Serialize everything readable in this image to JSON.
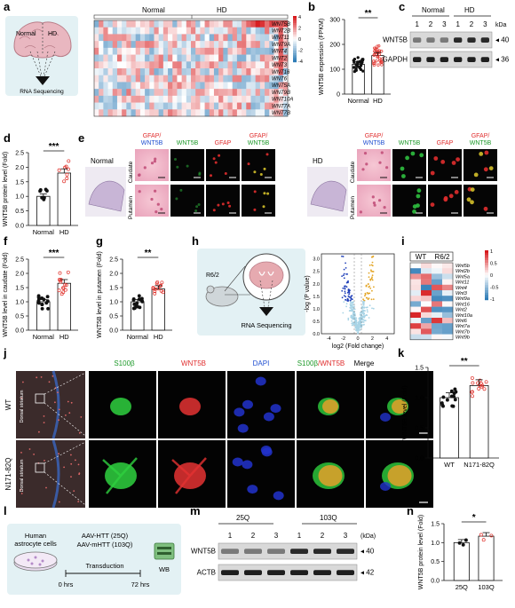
{
  "panels": {
    "a": {
      "letter": "a",
      "brain_labels": [
        "Normal",
        "HD"
      ],
      "arrow_label": "RNA Sequencing",
      "heatmap": {
        "group_labels": [
          "Normal",
          "HD"
        ],
        "genes": [
          "WNT5B",
          "WNT2B",
          "WNT11",
          "WNT9A",
          "WNT4",
          "WNT2",
          "WNT3",
          "WNT16",
          "WNT6",
          "WNT5A",
          "WNT9B",
          "WNT10A",
          "WNT7A",
          "WNT7B"
        ],
        "scale_ticks": [
          "4",
          "2",
          "0",
          "-2",
          "-4"
        ],
        "colors": {
          "high": "#d7191c",
          "mid": "#ffffff",
          "low": "#2c7bb6"
        }
      }
    },
    "b": {
      "letter": "b",
      "sig": "**",
      "ylabel": "WNT5B expression (FPKM)",
      "yticks": [
        "0",
        "100",
        "200",
        "300"
      ],
      "categories": [
        "Normal",
        "HD"
      ]
    },
    "c": {
      "letter": "c",
      "group_labels": [
        "Normal",
        "HD"
      ],
      "lanes": [
        "1",
        "2",
        "3",
        "1",
        "2",
        "3"
      ],
      "kda": "kDa",
      "rows": [
        {
          "label": "WNT5B",
          "marker": "40"
        },
        {
          "label": "GAPDH",
          "marker": "36"
        }
      ]
    },
    "d": {
      "letter": "d",
      "sig": "***",
      "ylabel": "WNT5B protein level (Fold)",
      "yticks": [
        "0.0",
        "0.5",
        "1.0",
        "1.5",
        "2.0",
        "2.5"
      ],
      "categories": [
        "Normal",
        "HD"
      ]
    },
    "e": {
      "letter": "e",
      "normal_title": "Normal",
      "hd_title": "HD",
      "col_headers": {
        "gfap_wnt5b_a": "GFAP/",
        "gfap_wnt5b_b": "WNT5B",
        "wnt5b": "WNT5B",
        "gfap": "GFAP",
        "merge_a": "GFAP/",
        "merge_b": "WNT5B"
      },
      "row_labels": [
        "Caudate",
        "Putamen"
      ]
    },
    "f": {
      "letter": "f",
      "sig": "***",
      "ylabel": "WNT5B level in caudate (Fold)",
      "yticks": [
        "0.0",
        "0.5",
        "1.0",
        "1.5",
        "2.0",
        "2.5"
      ],
      "categories": [
        "Normal",
        "HD"
      ]
    },
    "g": {
      "letter": "g",
      "sig": "**",
      "ylabel": "WNT5B level in putamen (Fold)",
      "yticks": [
        "0.0",
        "0.5",
        "1.0",
        "1.5",
        "2.0",
        "2.5"
      ],
      "categories": [
        "Normal",
        "HD"
      ]
    },
    "h": {
      "letter": "h",
      "mouse_label": "R6/2",
      "arrow_label": "RNA Sequencing",
      "volcano": {
        "ylabel": "-log (P value)",
        "xlabel": "log2 (Fold change)",
        "xticks": [
          "-4",
          "-2",
          "0",
          "2",
          "4"
        ],
        "yticks": [
          "0.0",
          "0.5",
          "1.0",
          "1.5",
          "2.0",
          "2.5",
          "3.0"
        ]
      }
    },
    "i": {
      "letter": "i",
      "group_labels": [
        "WT",
        "R6/2"
      ],
      "genes": [
        "Wnt5b",
        "Wnt2b",
        "Wnt5a",
        "Wnt11",
        "Wnt4",
        "Wnt3",
        "Wnt9a",
        "Wnt16",
        "Wnt2",
        "Wnt10a",
        "Wnt6",
        "Wnt7a",
        "Wnt7b",
        "Wnt9b"
      ],
      "scale_ticks": [
        "1",
        "0.5",
        "0",
        "-0.5",
        "-1"
      ]
    },
    "j": {
      "letter": "j",
      "col_headers": {
        "s100b": "S100β",
        "wnt5b": "WNT5B",
        "dapi": "DAPI",
        "merge_a": "S100β",
        "merge_b": "/WNT5B",
        "merge": "Merge"
      },
      "row_labels": [
        "WT",
        "N171-82Q"
      ],
      "region_label": "Dorsal striatum"
    },
    "k": {
      "letter": "k",
      "sig": "**",
      "ylabel": "WNT5B level (Fold)",
      "yticks": [
        "0.0",
        "0.5",
        "1.0",
        "1.5"
      ],
      "categories": [
        "WT",
        "N171-82Q"
      ]
    },
    "l": {
      "letter": "l",
      "cell_label_1": "Human",
      "cell_label_2": "astrocyte cells",
      "aav_1": "AAV-HTT (25Q)",
      "aav_2": "AAV-mHTT (103Q)",
      "transduction": "Transduction",
      "t0": "0 hrs",
      "t1": "72 hrs",
      "wb": "WB"
    },
    "m": {
      "letter": "m",
      "group_labels": [
        "25Q",
        "103Q"
      ],
      "lanes": [
        "1",
        "2",
        "3",
        "1",
        "2",
        "3"
      ],
      "kda": "(kDa)",
      "rows": [
        {
          "label": "WNT5B",
          "marker": "40"
        },
        {
          "label": "ACTB",
          "marker": "42"
        }
      ]
    },
    "n": {
      "letter": "n",
      "sig": "*",
      "ylabel": "WNT5B protein level (Fold)",
      "yticks": [
        "0.0",
        "0.5",
        "1.0",
        "1.5"
      ],
      "categories": [
        "25Q",
        "103Q"
      ]
    }
  },
  "chart_data": [
    {
      "type": "bar",
      "panel": "b",
      "categories": [
        "Normal",
        "HD"
      ],
      "values": [
        120,
        155
      ],
      "ylim": [
        0,
        300
      ],
      "ylabel": "WNT5B expression (FPKM)"
    },
    {
      "type": "bar",
      "panel": "d",
      "categories": [
        "Normal",
        "HD"
      ],
      "values": [
        1.0,
        1.8
      ],
      "ylim": [
        0,
        2.5
      ],
      "ylabel": "WNT5B protein level (Fold)"
    },
    {
      "type": "bar",
      "panel": "f",
      "categories": [
        "Normal",
        "HD"
      ],
      "values": [
        1.0,
        1.65
      ],
      "ylim": [
        0,
        2.5
      ],
      "ylabel": "WNT5B level in caudate (Fold)"
    },
    {
      "type": "bar",
      "panel": "g",
      "categories": [
        "Normal",
        "HD"
      ],
      "values": [
        1.0,
        1.45
      ],
      "ylim": [
        0,
        2.5
      ],
      "ylabel": "WNT5B level in putamen (Fold)"
    },
    {
      "type": "bar",
      "panel": "k",
      "categories": [
        "WT",
        "N171-82Q"
      ],
      "values": [
        1.0,
        1.2
      ],
      "ylim": [
        0,
        1.5
      ],
      "ylabel": "WNT5B level (Fold)"
    },
    {
      "type": "bar",
      "panel": "n",
      "categories": [
        "25Q",
        "103Q"
      ],
      "values": [
        1.0,
        1.17
      ],
      "ylim": [
        0,
        1.5
      ],
      "ylabel": "WNT5B protein level (Fold)"
    }
  ]
}
